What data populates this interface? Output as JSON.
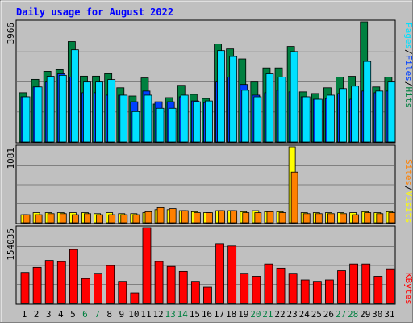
{
  "title": "Daily usage for August 2022",
  "colors": {
    "background": "#c0c0c0",
    "title": "#0000ff",
    "hits": "#008040",
    "files": "#0040ff",
    "pages": "#00e0ff",
    "visits": "#ffff00",
    "sites": "#ff8000",
    "kbytes": "#ff0000",
    "weekend_day": "#008040",
    "weekday_day": "#000000"
  },
  "top_panel": {
    "ymax_label": "3966",
    "legend": [
      {
        "label": "Pages",
        "color": "#00e0ff"
      },
      {
        "label": "/",
        "color": "#000000"
      },
      {
        "label": "Files",
        "color": "#0040ff"
      },
      {
        "label": "/",
        "color": "#000000"
      },
      {
        "label": "Hits",
        "color": "#008040"
      }
    ]
  },
  "middle_panel": {
    "ymax_label": "1081",
    "legend": [
      {
        "label": "Sites",
        "color": "#ff8000"
      },
      {
        "label": "/",
        "color": "#000000"
      },
      {
        "label": "Visits",
        "color": "#ffff00"
      }
    ]
  },
  "bottom_panel": {
    "ymax_label": "154035",
    "legend": [
      {
        "label": "KBytes",
        "color": "#ff0000"
      }
    ]
  },
  "chart_data": {
    "type": "bar",
    "title": "Daily usage for August 2022",
    "categories": [
      "1",
      "2",
      "3",
      "4",
      "5",
      "6",
      "7",
      "8",
      "9",
      "10",
      "11",
      "12",
      "13",
      "14",
      "15",
      "16",
      "17",
      "18",
      "19",
      "20",
      "21",
      "22",
      "23",
      "24",
      "25",
      "26",
      "27",
      "28",
      "29",
      "30",
      "31"
    ],
    "weekend_days": [
      "6",
      "7",
      "13",
      "14",
      "20",
      "21",
      "27",
      "28"
    ],
    "panels": [
      {
        "name": "top",
        "ymax": 3966,
        "series": [
          {
            "name": "Hits",
            "values": [
              1627,
              2066,
              2331,
              2385,
              3314,
              2173,
              2173,
              2254,
              1789,
              1517,
              2114,
              1252,
              1464,
              1870,
              1572,
              1436,
              3233,
              3070,
              2741,
              1979,
              2444,
              2444,
              3152,
              1654,
              1599,
              1789,
              2141,
              2168,
              3966,
              1816,
              2141
            ]
          },
          {
            "name": "Files",
            "values": [
              1491,
              1816,
              1979,
              2249,
              2141,
              1626,
              1626,
              1545,
              1545,
              1328,
              1681,
              1328,
              1328,
              1491,
              1355,
              1301,
              1979,
              2141,
              1898,
              1545,
              1626,
              1708,
              1654,
              1491,
              1410,
              1437,
              1599,
              1410,
              1681,
              1626,
              1681
            ]
          },
          {
            "name": "Pages",
            "values": [
              1491,
              1816,
              2168,
              2200,
              3043,
              1979,
              1979,
              2060,
              1545,
              1003,
              1545,
              1111,
              1111,
              1545,
              1328,
              1355,
              3016,
              2822,
              1708,
              1491,
              2249,
              2141,
              2985,
              1491,
              1410,
              1545,
              1762,
              1843,
              2660,
              1681,
              1979
            ]
          }
        ]
      },
      {
        "name": "middle",
        "ymax": 1081,
        "series": [
          {
            "name": "Visits",
            "values": [
              114,
              143,
              143,
              143,
              143,
              143,
              129,
              143,
              129,
              129,
              143,
              186,
              186,
              172,
              157,
              143,
              172,
              172,
              157,
              172,
              157,
              157,
              1081,
              143,
              143,
              143,
              143,
              143,
              157,
              143,
              157
            ]
          },
          {
            "name": "Sites",
            "values": [
              114,
              114,
              129,
              129,
              114,
              129,
              114,
              114,
              114,
              114,
              157,
              214,
              200,
              172,
              143,
              143,
              172,
              172,
              143,
              143,
              157,
              143,
              722,
              129,
              129,
              129,
              129,
              114,
              143,
              129,
              143
            ]
          }
        ]
      },
      {
        "name": "bottom",
        "ymax": 154035,
        "series": [
          {
            "name": "KBytes",
            "values": [
              62755,
              73165,
              87476,
              84874,
              109594,
              50429,
              61104,
              76874,
              44744,
              21236,
              154035,
              85150,
              75023,
              64915,
              44744,
              32733,
              121500,
              116650,
              61104,
              54917,
              80029,
              71515,
              61104,
              47510,
              44744,
              47510,
              66277,
              80029,
              80029,
              54917,
              70167
            ]
          }
        ]
      }
    ]
  }
}
